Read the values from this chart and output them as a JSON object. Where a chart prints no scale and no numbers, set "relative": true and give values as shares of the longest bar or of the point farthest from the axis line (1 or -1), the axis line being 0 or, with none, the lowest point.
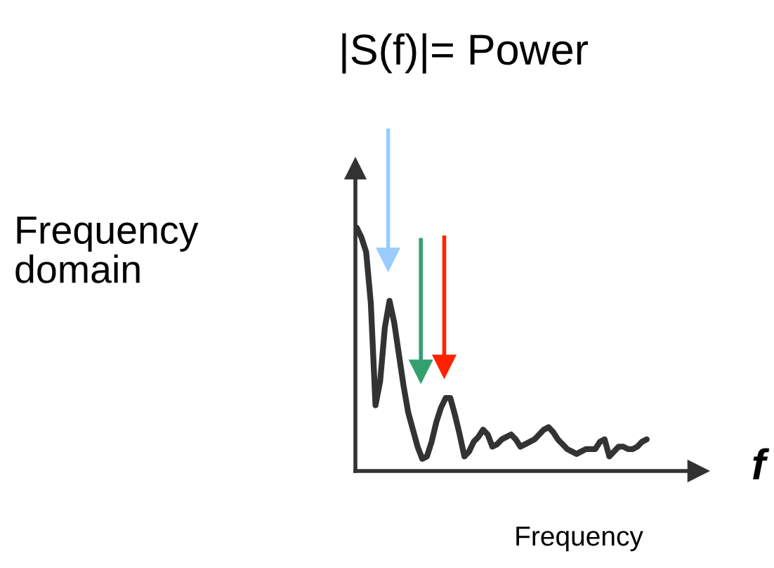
{
  "chart_data": {
    "type": "line",
    "title": "|S(f)|= Power",
    "xlabel": "Frequency",
    "ylabel": "Frequency\ndomain",
    "annotations": [
      "f"
    ],
    "relative": true,
    "categories": [
      null,
      null,
      null,
      null,
      null,
      null,
      null,
      null,
      null,
      null,
      null,
      null,
      null,
      null,
      null,
      null,
      null,
      null,
      null,
      null,
      null,
      null,
      null,
      null,
      null,
      null,
      null,
      null,
      null,
      null,
      null,
      null,
      null,
      null,
      null,
      null,
      null,
      null,
      null,
      null,
      null,
      null,
      null,
      null,
      null,
      null,
      null,
      null,
      null,
      null,
      null,
      null,
      null,
      null,
      null,
      null,
      null,
      null,
      null,
      null,
      null,
      null,
      null
    ],
    "series": [
      {
        "color": "#333333",
        "values": [
          1.0,
          0.96,
          0.9,
          0.69,
          0.27,
          0.37,
          0.59,
          0.7,
          0.61,
          0.48,
          0.35,
          0.24,
          0.17,
          0.1,
          0.05,
          0.06,
          0.12,
          0.2,
          0.26,
          0.3,
          0.3,
          0.23,
          0.15,
          0.06,
          0.08,
          0.12,
          0.14,
          0.17,
          0.15,
          0.1,
          0.11,
          0.13,
          0.14,
          0.15,
          0.13,
          0.1,
          0.11,
          0.12,
          0.13,
          0.15,
          0.17,
          0.18,
          0.16,
          0.13,
          0.11,
          0.09,
          0.08,
          0.07,
          0.08,
          0.09,
          0.09,
          0.09,
          0.12,
          0.13,
          0.06,
          0.08,
          0.1,
          0.1,
          0.09,
          0.09,
          0.1,
          0.12,
          0.13
        ]
      }
    ]
  }
}
